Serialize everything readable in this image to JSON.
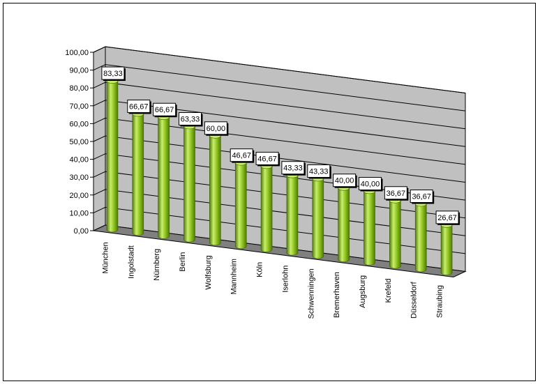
{
  "chart_data": {
    "type": "bar",
    "title": "",
    "xlabel": "",
    "ylabel": "",
    "categories": [
      "München",
      "Ingolstadt",
      "Nürnberg",
      "Berlin",
      "Wolfsburg",
      "Mannheim",
      "Köln",
      "Iserlohn",
      "Schwenningen",
      "Bremerhaven",
      "Augsburg",
      "Krefeld",
      "Düsseldorf",
      "Straubing"
    ],
    "values": [
      83.33,
      66.67,
      66.67,
      63.33,
      60.0,
      46.67,
      46.67,
      43.33,
      43.33,
      40.0,
      40.0,
      36.67,
      36.67,
      26.67
    ],
    "value_labels": [
      "83,33",
      "66,67",
      "66,67",
      "63,33",
      "60,00",
      "46,67",
      "46,67",
      "43,33",
      "43,33",
      "40,00",
      "40,00",
      "36,67",
      "36,67",
      "26,67"
    ],
    "ylim": [
      0,
      100
    ],
    "yticks": [
      0,
      10,
      20,
      30,
      40,
      50,
      60,
      70,
      80,
      90,
      100
    ],
    "ytick_labels": [
      "0,00",
      "10,00",
      "20,00",
      "30,00",
      "40,00",
      "50,00",
      "60,00",
      "70,00",
      "80,00",
      "90,00",
      "100,00"
    ],
    "grid": true,
    "style": "3d-cylinder",
    "colors": {
      "bar": "#8fc31f",
      "bar_dark": "#4f7a0a",
      "bar_light": "#c8ef6a",
      "wall": "#c0c0c0",
      "floor": "#808080"
    }
  }
}
